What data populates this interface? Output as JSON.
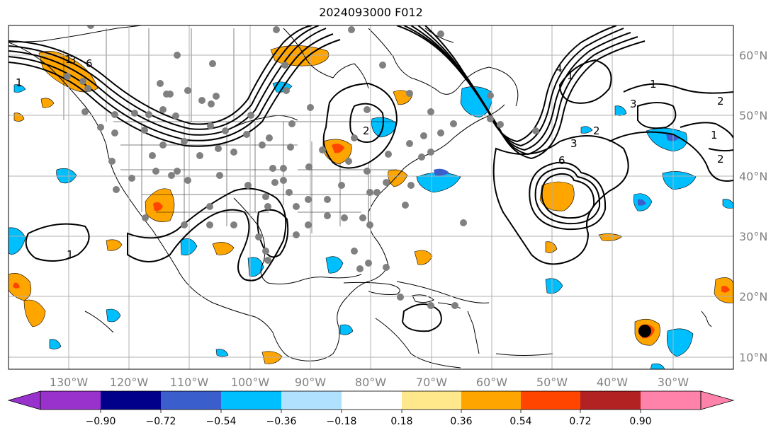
{
  "title": "2024093000 F012",
  "lon_labels": [
    "130°W",
    "120°W",
    "110°W",
    "100°W",
    "90°W",
    "80°W",
    "70°W",
    "60°W",
    "50°W",
    "40°W",
    "30°W"
  ],
  "lat_labels": [
    "60°N",
    "50°N",
    "40°N",
    "30°N",
    "20°N",
    "10°N"
  ],
  "colorbar": {
    "tick_labels": [
      "−0.90",
      "−0.72",
      "−0.54",
      "−0.36",
      "−0.18",
      "0.18",
      "0.36",
      "0.54",
      "0.72",
      "0.90"
    ],
    "colors": [
      "#9932cc",
      "#00008b",
      "#3a5fcd",
      "#00bfff",
      "#b0e2ff",
      "#ffffff",
      "#ffe88c",
      "#ffa500",
      "#ff4500",
      "#b22222",
      "#ff82ab"
    ]
  },
  "contour_labels": [
    "1",
    "3",
    "6",
    "1",
    "4",
    "1",
    "2",
    "3",
    "1",
    "2",
    "2",
    "3",
    "6",
    "1",
    "1",
    "2"
  ],
  "colors": {
    "contour": "#000000",
    "station": "#808080",
    "marker": "#000000",
    "grid": "#b0b0b0"
  }
}
